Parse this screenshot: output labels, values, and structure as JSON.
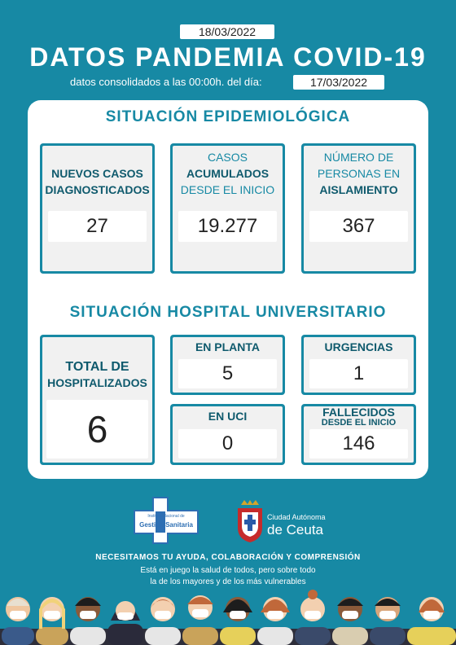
{
  "header": {
    "report_date": "18/03/2022",
    "title": "DATOS PANDEMIA COVID-19",
    "consolidated_text": "datos consolidados a las 00:00h. del día:",
    "consolidated_date": "17/03/2022"
  },
  "epidemiological": {
    "title": "SITUACIÓN EPIDEMIOLÓGICA",
    "cards": [
      {
        "line1": "NUEVOS CASOS",
        "line2": "DIAGNOSTICADOS",
        "value": "27"
      },
      {
        "line1": "CASOS",
        "line2": "ACUMULADOS",
        "line3": "DESDE EL INICIO",
        "value": "19.277"
      },
      {
        "line1": "NÚMERO DE",
        "line2": "PERSONAS EN",
        "line3": "AISLAMIENTO",
        "value": "367"
      }
    ]
  },
  "hospital": {
    "title": "SITUACIÓN HOSPITAL UNIVERSITARIO",
    "total": {
      "line1": "TOTAL DE",
      "line2": "HOSPITALIZADOS",
      "value": "6"
    },
    "planta": {
      "label": "EN PLANTA",
      "value": "5"
    },
    "urgencias": {
      "label": "URGENCIAS",
      "value": "1"
    },
    "uci": {
      "label": "EN UCI",
      "value": "0"
    },
    "fallecidos": {
      "line1": "FALLECIDOS",
      "line2": "DESDE EL INICIO",
      "value": "146"
    }
  },
  "logos": {
    "ingesa_small": "Instituto Nacional de",
    "ingesa_main": "Gestión Sanitaria",
    "ceuta_line1": "Ciudad Autónoma",
    "ceuta_line2": "de Ceuta"
  },
  "footer": {
    "headline": "NECESITAMOS TU AYUDA, COLABORACIÓN  Y COMPRENSIÓN",
    "line1": "Está en juego la salud de todos, pero sobre todo",
    "line2": "la de los mayores y de los más vulnerables"
  },
  "colors": {
    "brand": "#1789a4",
    "panel": "#ffffff",
    "card_bg": "#f1f1f1"
  }
}
